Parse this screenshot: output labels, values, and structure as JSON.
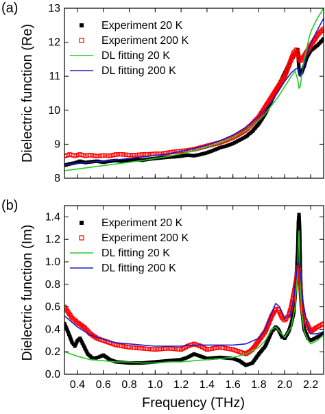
{
  "colors": {
    "exp20": "#000000",
    "exp200": "#ff0000",
    "fit20": "#22cc22",
    "fit200": "#1a1acc",
    "axis": "#000000"
  },
  "shared_xlabel": "Frequency (THz)",
  "chart_data": [
    {
      "type": "line",
      "panel_label": "(a)",
      "ylabel": "Dielectric function (Re)",
      "xlim": [
        0.3,
        2.3
      ],
      "ylim": [
        8,
        13
      ],
      "xticks": [
        0.4,
        0.6,
        0.8,
        1.0,
        1.2,
        1.4,
        1.6,
        1.8,
        2.0,
        2.2
      ],
      "xtick_labels": [],
      "yticks": [
        8,
        9,
        10,
        11,
        12,
        13
      ],
      "ytick_labels": [
        "8",
        "9",
        "10",
        "11",
        "12",
        "13"
      ],
      "legend_position": "top-left",
      "series": [
        {
          "name": "Experiment 20 K",
          "style": "scatter-square-filled",
          "color": "#000000",
          "x": [
            0.3,
            0.34,
            0.38,
            0.42,
            0.46,
            0.5,
            0.55,
            0.6,
            0.65,
            0.7,
            0.75,
            0.8,
            0.85,
            0.9,
            0.95,
            1.0,
            1.05,
            1.1,
            1.15,
            1.2,
            1.25,
            1.3,
            1.35,
            1.4,
            1.45,
            1.5,
            1.55,
            1.6,
            1.65,
            1.7,
            1.75,
            1.8,
            1.85,
            1.9,
            1.95,
            2.0,
            2.04,
            2.07,
            2.09,
            2.1,
            2.11,
            2.12,
            2.13,
            2.15,
            2.17,
            2.2,
            2.25,
            2.3
          ],
          "y": [
            8.38,
            8.42,
            8.45,
            8.5,
            8.46,
            8.48,
            8.5,
            8.47,
            8.5,
            8.52,
            8.5,
            8.52,
            8.55,
            8.53,
            8.56,
            8.58,
            8.6,
            8.62,
            8.63,
            8.65,
            8.68,
            8.66,
            8.7,
            8.75,
            8.82,
            8.9,
            8.95,
            9.02,
            9.12,
            9.22,
            9.38,
            9.6,
            9.9,
            10.3,
            10.7,
            11.1,
            11.4,
            11.6,
            11.7,
            11.78,
            11.2,
            11.05,
            11.1,
            11.3,
            11.55,
            11.75,
            11.9,
            12.1
          ]
        },
        {
          "name": "Experiment 200 K",
          "style": "scatter-square-open",
          "color": "#ff0000",
          "x": [
            0.3,
            0.34,
            0.38,
            0.42,
            0.46,
            0.5,
            0.55,
            0.6,
            0.65,
            0.7,
            0.75,
            0.8,
            0.85,
            0.9,
            0.95,
            1.0,
            1.05,
            1.1,
            1.15,
            1.2,
            1.25,
            1.3,
            1.35,
            1.4,
            1.45,
            1.5,
            1.55,
            1.6,
            1.65,
            1.7,
            1.75,
            1.8,
            1.85,
            1.9,
            1.95,
            2.0,
            2.04,
            2.07,
            2.09,
            2.1,
            2.11,
            2.12,
            2.15,
            2.2,
            2.25,
            2.3
          ],
          "y": [
            8.65,
            8.7,
            8.66,
            8.7,
            8.66,
            8.68,
            8.65,
            8.67,
            8.66,
            8.7,
            8.7,
            8.68,
            8.68,
            8.7,
            8.7,
            8.72,
            8.72,
            8.75,
            8.78,
            8.8,
            8.82,
            8.85,
            8.9,
            8.95,
            9.0,
            9.05,
            9.12,
            9.2,
            9.3,
            9.42,
            9.6,
            9.8,
            10.1,
            10.4,
            10.7,
            11.0,
            11.4,
            11.7,
            11.78,
            11.72,
            11.5,
            11.45,
            11.6,
            11.9,
            12.2,
            12.4
          ]
        },
        {
          "name": "DL fitting 20 K",
          "style": "line",
          "color": "#22cc22",
          "x": [
            0.3,
            0.4,
            0.5,
            0.6,
            0.7,
            0.8,
            0.9,
            1.0,
            1.1,
            1.2,
            1.3,
            1.4,
            1.5,
            1.6,
            1.7,
            1.8,
            1.85,
            1.9,
            1.95,
            2.0,
            2.05,
            2.08,
            2.1,
            2.11,
            2.12,
            2.13,
            2.15,
            2.18,
            2.2,
            2.25,
            2.3
          ],
          "y": [
            8.22,
            8.27,
            8.32,
            8.37,
            8.42,
            8.47,
            8.52,
            8.58,
            8.64,
            8.72,
            8.81,
            8.92,
            9.04,
            9.2,
            9.4,
            9.7,
            9.9,
            10.15,
            10.4,
            10.7,
            11.0,
            11.15,
            10.9,
            10.65,
            10.7,
            11.0,
            11.5,
            12.0,
            12.3,
            12.7,
            13.0
          ]
        },
        {
          "name": "DL fitting 200 K",
          "style": "line",
          "color": "#1a1acc",
          "x": [
            0.3,
            0.4,
            0.5,
            0.6,
            0.7,
            0.8,
            0.9,
            1.0,
            1.1,
            1.2,
            1.3,
            1.4,
            1.5,
            1.6,
            1.7,
            1.8,
            1.9,
            1.95,
            2.0,
            2.05,
            2.08,
            2.1,
            2.11,
            2.12,
            2.14,
            2.17,
            2.2,
            2.25,
            2.3
          ],
          "y": [
            8.4,
            8.43,
            8.47,
            8.5,
            8.54,
            8.58,
            8.62,
            8.67,
            8.72,
            8.79,
            8.87,
            8.97,
            9.1,
            9.27,
            9.5,
            9.82,
            10.25,
            10.55,
            10.85,
            11.1,
            11.2,
            11.25,
            11.1,
            11.0,
            11.2,
            11.6,
            11.95,
            12.35,
            12.7
          ]
        }
      ]
    },
    {
      "type": "line",
      "panel_label": "(b)",
      "ylabel": "Dielectric function (Im)",
      "xlabel": "Frequency (THz)",
      "xlim": [
        0.3,
        2.3
      ],
      "ylim": [
        0.0,
        1.5
      ],
      "xticks": [
        0.4,
        0.6,
        0.8,
        1.0,
        1.2,
        1.4,
        1.6,
        1.8,
        2.0,
        2.2
      ],
      "xtick_labels": [
        "0.4",
        "0.6",
        "0.8",
        "1.0",
        "1.2",
        "1.4",
        "1.6",
        "1.8",
        "2.0",
        "2.2"
      ],
      "yticks": [
        0.0,
        0.2,
        0.4,
        0.6,
        0.8,
        1.0,
        1.2,
        1.4
      ],
      "ytick_labels": [
        "0.0",
        "0.2",
        "0.4",
        "0.6",
        "0.8",
        "1.0",
        "1.2",
        "1.4"
      ],
      "legend_position": "top-left",
      "series": [
        {
          "name": "Experiment 20 K",
          "style": "scatter-square-filled",
          "color": "#000000",
          "x": [
            0.3,
            0.33,
            0.36,
            0.38,
            0.4,
            0.42,
            0.45,
            0.48,
            0.52,
            0.56,
            0.6,
            0.65,
            0.7,
            0.8,
            0.9,
            1.0,
            1.1,
            1.2,
            1.25,
            1.3,
            1.35,
            1.4,
            1.5,
            1.6,
            1.65,
            1.7,
            1.75,
            1.8,
            1.85,
            1.9,
            1.93,
            1.95,
            1.98,
            2.0,
            2.03,
            2.05,
            2.07,
            2.08,
            2.09,
            2.1,
            2.105,
            2.11,
            2.115,
            2.12,
            2.13,
            2.15,
            2.18,
            2.2,
            2.25,
            2.3
          ],
          "y": [
            0.45,
            0.37,
            0.28,
            0.25,
            0.3,
            0.32,
            0.25,
            0.18,
            0.14,
            0.15,
            0.17,
            0.13,
            0.11,
            0.1,
            0.1,
            0.11,
            0.12,
            0.13,
            0.15,
            0.18,
            0.16,
            0.14,
            0.15,
            0.14,
            0.12,
            0.08,
            0.1,
            0.18,
            0.25,
            0.38,
            0.42,
            0.4,
            0.33,
            0.32,
            0.38,
            0.45,
            0.55,
            0.7,
            0.9,
            1.1,
            1.35,
            1.42,
            1.3,
            0.95,
            0.6,
            0.4,
            0.32,
            0.3,
            0.33,
            0.36
          ]
        },
        {
          "name": "Experiment 200 K",
          "style": "scatter-square-open",
          "color": "#ff0000",
          "x": [
            0.3,
            0.33,
            0.36,
            0.4,
            0.45,
            0.5,
            0.55,
            0.6,
            0.65,
            0.7,
            0.8,
            0.9,
            1.0,
            1.1,
            1.2,
            1.25,
            1.3,
            1.35,
            1.4,
            1.5,
            1.6,
            1.65,
            1.7,
            1.75,
            1.8,
            1.85,
            1.9,
            1.93,
            1.95,
            1.98,
            2.0,
            2.03,
            2.05,
            2.07,
            2.09,
            2.1,
            2.11,
            2.12,
            2.13,
            2.15,
            2.18,
            2.2,
            2.25,
            2.3
          ],
          "y": [
            0.6,
            0.55,
            0.5,
            0.46,
            0.42,
            0.36,
            0.32,
            0.3,
            0.28,
            0.26,
            0.24,
            0.23,
            0.22,
            0.23,
            0.22,
            0.25,
            0.27,
            0.25,
            0.22,
            0.24,
            0.22,
            0.2,
            0.18,
            0.22,
            0.3,
            0.38,
            0.52,
            0.58,
            0.58,
            0.5,
            0.48,
            0.52,
            0.6,
            0.72,
            0.85,
            0.95,
            0.93,
            0.8,
            0.62,
            0.5,
            0.43,
            0.38,
            0.42,
            0.45
          ]
        },
        {
          "name": "DL fitting 20 K",
          "style": "line",
          "color": "#22cc22",
          "x": [
            0.3,
            0.4,
            0.5,
            0.6,
            0.7,
            0.8,
            0.9,
            1.0,
            1.1,
            1.2,
            1.3,
            1.4,
            1.5,
            1.6,
            1.7,
            1.8,
            1.85,
            1.9,
            1.93,
            1.96,
            2.0,
            2.05,
            2.08,
            2.1,
            2.105,
            2.11,
            2.115,
            2.12,
            2.13,
            2.15,
            2.18,
            2.2,
            2.25,
            2.3
          ],
          "y": [
            0.2,
            0.16,
            0.13,
            0.12,
            0.11,
            0.11,
            0.1,
            0.1,
            0.11,
            0.11,
            0.12,
            0.13,
            0.14,
            0.15,
            0.18,
            0.24,
            0.3,
            0.4,
            0.42,
            0.38,
            0.33,
            0.42,
            0.6,
            0.95,
            1.15,
            1.28,
            1.1,
            0.8,
            0.55,
            0.38,
            0.3,
            0.27,
            0.3,
            0.35
          ]
        },
        {
          "name": "DL fitting 200 K",
          "style": "line",
          "color": "#1a1acc",
          "x": [
            0.3,
            0.4,
            0.5,
            0.6,
            0.7,
            0.8,
            0.9,
            1.0,
            1.1,
            1.2,
            1.3,
            1.4,
            1.5,
            1.6,
            1.7,
            1.8,
            1.85,
            1.9,
            1.93,
            1.96,
            2.0,
            2.04,
            2.07,
            2.09,
            2.1,
            2.11,
            2.12,
            2.14,
            2.17,
            2.2,
            2.25,
            2.3
          ],
          "y": [
            0.52,
            0.42,
            0.35,
            0.31,
            0.28,
            0.27,
            0.26,
            0.25,
            0.25,
            0.25,
            0.26,
            0.26,
            0.26,
            0.26,
            0.27,
            0.32,
            0.4,
            0.55,
            0.63,
            0.6,
            0.5,
            0.52,
            0.68,
            0.88,
            0.98,
            1.0,
            0.9,
            0.65,
            0.45,
            0.36,
            0.36,
            0.38
          ]
        }
      ]
    }
  ]
}
